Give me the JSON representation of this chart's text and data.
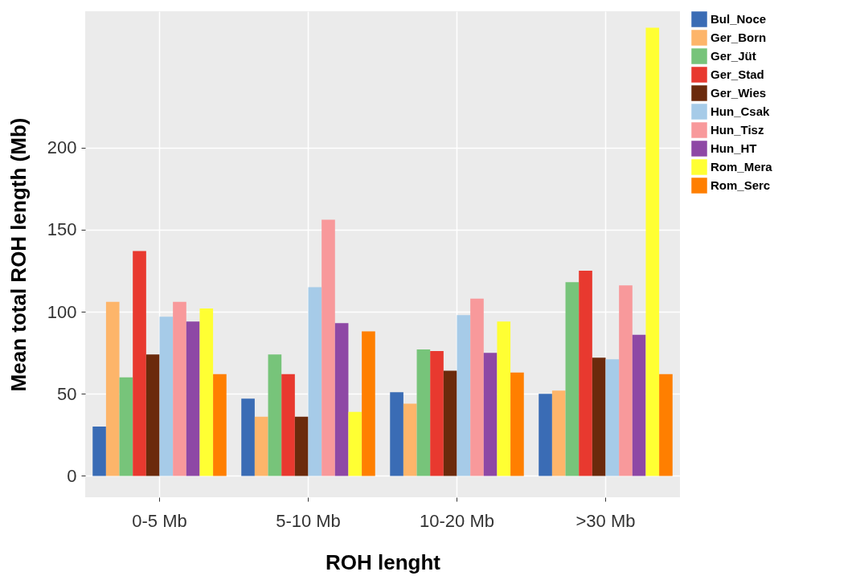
{
  "chart_data": {
    "type": "bar",
    "xlabel": "ROH lenght",
    "ylabel": "Mean total ROH length (Mb)",
    "categories": [
      "0-5 Mb",
      "5-10 Mb",
      "10-20 Mb",
      ">30 Mb"
    ],
    "series": [
      {
        "name": "Bul_Noce",
        "color": "#3a6cb5",
        "values": [
          30,
          47,
          51,
          50
        ]
      },
      {
        "name": "Ger_Born",
        "color": "#fdb56a",
        "values": [
          106,
          36,
          44,
          52
        ]
      },
      {
        "name": "Ger_Jüt",
        "color": "#77c47a",
        "values": [
          60,
          74,
          77,
          118
        ]
      },
      {
        "name": "Ger_Stad",
        "color": "#e8392f",
        "values": [
          137,
          62,
          76,
          125
        ]
      },
      {
        "name": "Ger_Wies",
        "color": "#6b2a0c",
        "values": [
          74,
          36,
          64,
          72
        ]
      },
      {
        "name": "Hun_Csak",
        "color": "#a6cbe8",
        "values": [
          97,
          115,
          98,
          71
        ]
      },
      {
        "name": "Hun_Tisz",
        "color": "#f8999b",
        "values": [
          106,
          156,
          108,
          116
        ]
      },
      {
        "name": "Hun_HT",
        "color": "#8e48a5",
        "values": [
          94,
          93,
          75,
          86
        ]
      },
      {
        "name": "Rom_Mera",
        "color": "#ffff33",
        "values": [
          102,
          39,
          94,
          273
        ]
      },
      {
        "name": "Rom_Serc",
        "color": "#ff7f00",
        "values": [
          62,
          88,
          63,
          62
        ]
      }
    ],
    "ylim": [
      -13,
      283
    ],
    "yticks": [
      0,
      50,
      100,
      150,
      200
    ],
    "grid": true,
    "legend": "right"
  }
}
